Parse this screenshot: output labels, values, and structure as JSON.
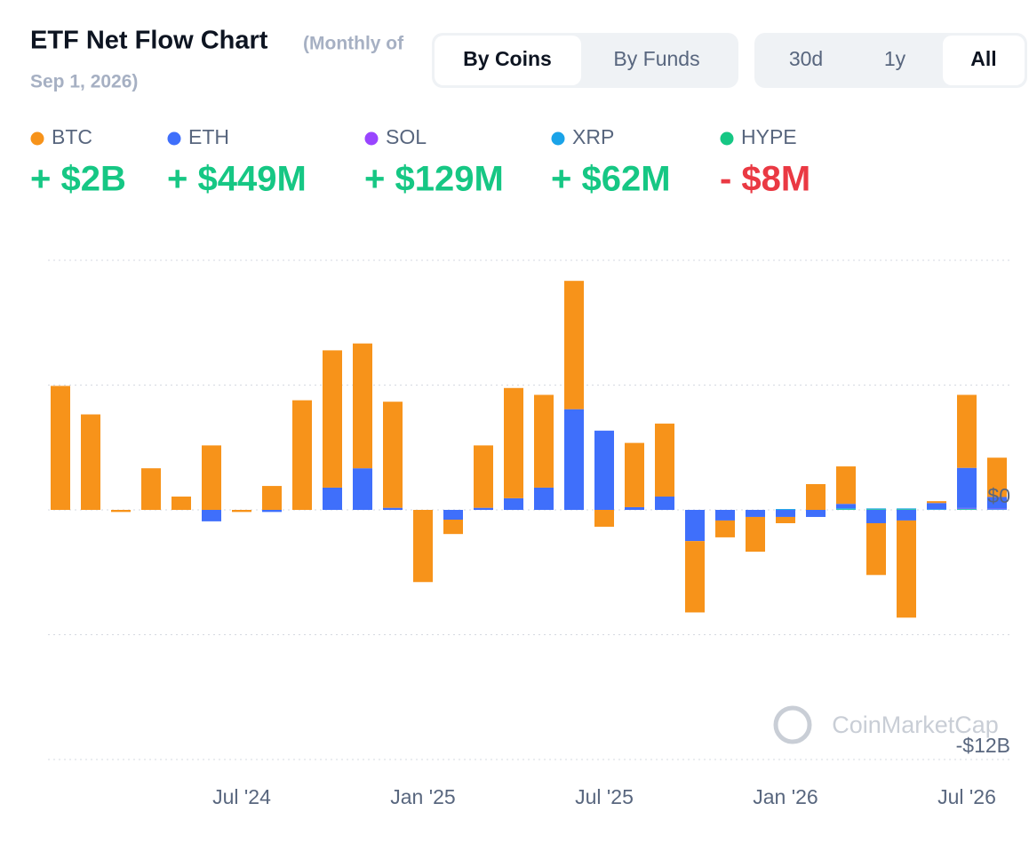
{
  "header": {
    "title": "ETF Net Flow Chart",
    "subtitle": "(Monthly of",
    "subtitle_date": "Sep 1, 2026)"
  },
  "tabs": {
    "view": [
      "By Coins",
      "By Funds"
    ],
    "view_active": 0,
    "range": [
      "30d",
      "1y",
      "All"
    ],
    "range_active": 2
  },
  "watermark": "CoinMarketCap",
  "chart_data": {
    "type": "stacked-bar",
    "categories": [
      null,
      null,
      null,
      null,
      null,
      null,
      "Jul '24",
      null,
      null,
      null,
      null,
      null,
      "Jan '25",
      null,
      null,
      null,
      null,
      null,
      "Jul '25",
      null,
      null,
      null,
      null,
      null,
      "Jan '26",
      null,
      null,
      null,
      null,
      null,
      "Jul '26",
      null
    ],
    "series": [
      {
        "name": "BTC",
        "color": "#f7931a",
        "total": 2,
        "total_label": "+ $2B",
        "values": [
          5.96,
          4.59,
          -0.1,
          2.0,
          0.64,
          3.1,
          -0.1,
          1.15,
          5.27,
          6.6,
          6.0,
          5.1,
          -3.47,
          -0.69,
          3.0,
          5.3,
          4.46,
          6.17,
          -0.81,
          3.09,
          3.51,
          -3.43,
          -0.81,
          -1.67,
          -0.3,
          1.24,
          1.8,
          -2.49,
          -4.67,
          0.09,
          3.51,
          1.89
        ]
      },
      {
        "name": "ETH",
        "color": "#3f6ffb",
        "total": 0.449,
        "total_label": "+ $449M",
        "values": [
          0,
          0,
          0,
          0,
          0,
          -0.55,
          0,
          -0.1,
          0,
          1.07,
          2.0,
          0.1,
          0,
          -0.47,
          0.1,
          0.56,
          1.07,
          4.84,
          3.81,
          0.13,
          0.64,
          -1.5,
          -0.51,
          -0.34,
          -0.34,
          -0.34,
          0.21,
          -0.64,
          -0.51,
          0.3,
          1.93,
          0.56
        ]
      },
      {
        "name": "SOL",
        "color": "#9945ff",
        "total": 0.129,
        "total_label": "+ $129M",
        "values": [
          0,
          0,
          0,
          0,
          0,
          0,
          0,
          0,
          0,
          0,
          0,
          0,
          0,
          0,
          0,
          0,
          0,
          0,
          0,
          0,
          0,
          0,
          0,
          0,
          0,
          0,
          0,
          0,
          0,
          0,
          0.03,
          0.03
        ]
      },
      {
        "name": "XRP",
        "color": "#1aa3e8",
        "total": 0.062,
        "total_label": "+ $62M",
        "values": [
          0,
          0,
          0,
          0,
          0,
          0,
          0,
          0,
          0,
          0,
          0,
          0,
          0,
          0,
          0,
          0,
          0,
          0,
          0,
          0,
          0,
          0,
          0,
          0,
          0.04,
          0,
          0.05,
          0.04,
          0.04,
          0.03,
          0.03,
          0.03
        ]
      },
      {
        "name": "HYPE",
        "color": "#16c784",
        "total": -0.008,
        "total_label": "- $8M",
        "values": [
          0,
          0,
          0,
          0,
          0,
          0,
          0,
          0,
          0,
          0,
          0,
          0,
          0,
          0,
          0,
          0,
          0,
          0,
          0,
          0,
          0,
          0,
          0,
          0,
          0,
          0,
          0.03,
          0.03,
          0.03,
          0,
          0.03,
          0
        ]
      }
    ],
    "ylim": [
      -12.8,
      12.6
    ],
    "yticks": [
      {
        "value": 0,
        "label": "$0"
      },
      {
        "value": -12,
        "label": "-$12B"
      }
    ],
    "grid_lines": [
      12,
      6,
      0,
      -6,
      -12
    ],
    "positive_color": "#16c784",
    "negative_color": "#ea3943"
  }
}
